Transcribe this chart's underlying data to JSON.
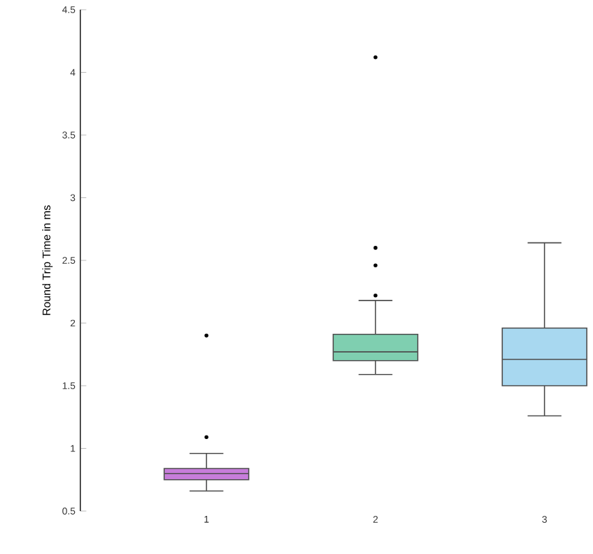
{
  "chart_data": {
    "type": "box",
    "ylabel": "Round Trip Time in ms",
    "categories": [
      "1",
      "2",
      "3"
    ],
    "colors": [
      "#c77ddb",
      "#7fcfb0",
      "#a8d8f0"
    ],
    "boxes": [
      {
        "low": 0.66,
        "q1": 0.75,
        "median": 0.8,
        "q3": 0.84,
        "high": 0.96,
        "outliers": [
          1.09,
          1.9
        ]
      },
      {
        "low": 1.59,
        "q1": 1.7,
        "median": 1.77,
        "q3": 1.91,
        "high": 2.18,
        "outliers": [
          2.22,
          2.46,
          2.6,
          4.12
        ]
      },
      {
        "low": 1.26,
        "q1": 1.5,
        "median": 1.71,
        "q3": 1.96,
        "high": 2.64
      }
    ],
    "ylim": [
      0.5,
      4.5
    ],
    "yticks": [
      0.5,
      1,
      1.5,
      2,
      2.5,
      3,
      3.5,
      4,
      4.5
    ],
    "grid": false
  }
}
